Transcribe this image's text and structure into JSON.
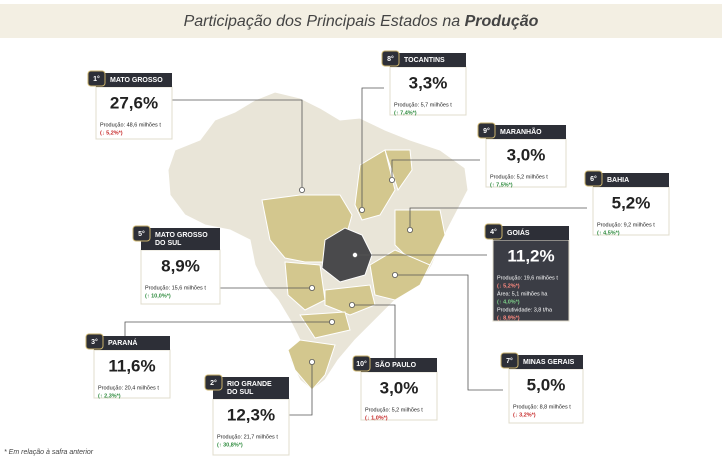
{
  "title": {
    "text": "Participação dos Principais Estados na ",
    "emphasis": "Produção"
  },
  "cards": [
    {
      "rank": "1°",
      "name": [
        "MATO GROSSO"
      ],
      "share": "27,6%",
      "details": [
        {
          "label": "Produção: 48,6 milhões t",
          "change": "(↓ 5,2%*)"
        }
      ]
    },
    {
      "rank": "8°",
      "name": [
        "TOCANTINS"
      ],
      "share": "3,3%",
      "details": [
        {
          "label": "Produção: 5,7 milhões t",
          "change": "(↑ 7,4%*)"
        }
      ]
    },
    {
      "rank": "9°",
      "name": [
        "MARANHÃO"
      ],
      "share": "3,0%",
      "details": [
        {
          "label": "Produção: 5,2 milhões t",
          "change": "(↑ 7,5%*)"
        }
      ]
    },
    {
      "rank": "6°",
      "name": [
        "BAHIA"
      ],
      "share": "5,2%",
      "details": [
        {
          "label": "Produção: 9,2 milhões t",
          "change": "(↑ 4,5%*)"
        }
      ]
    },
    {
      "rank": "4°",
      "name": [
        "GOIÁS"
      ],
      "share": "11,2%",
      "details": [
        {
          "label": "Produção: 19,6 milhões t",
          "change": "(↓ 5,2%*)"
        },
        {
          "label": "Área: 5,1 milhões ha",
          "change": "(↑ 4,0%*)"
        },
        {
          "label": "Produtividade: 3,8 t/ha",
          "change": "(↓ 8,9%*)"
        }
      ]
    },
    {
      "rank": "5°",
      "name": [
        "MATO GROSSO",
        "DO SUL"
      ],
      "share": "8,9%",
      "details": [
        {
          "label": "Produção: 15,6 milhões t",
          "change": "(↑ 10,0%*)"
        }
      ]
    },
    {
      "rank": "3°",
      "name": [
        "PARANÁ"
      ],
      "share": "11,6%",
      "details": [
        {
          "label": "Produção: 20,4 milhões t",
          "change": "(↑ 2,3%*)"
        }
      ]
    },
    {
      "rank": "2°",
      "name": [
        "RIO GRANDE",
        "DO SUL"
      ],
      "share": "12,3%",
      "details": [
        {
          "label": "Produção: 21,7 milhões t",
          "change": "(↑ 30,8%*)"
        }
      ]
    },
    {
      "rank": "10°",
      "name": [
        "SÃO PAULO"
      ],
      "share": "3,0%",
      "details": [
        {
          "label": "Produção: 5,2 milhões t",
          "change": "(↓ 1,0%*)"
        }
      ]
    },
    {
      "rank": "7°",
      "name": [
        "MINAS GERAIS"
      ],
      "share": "5,0%",
      "details": [
        {
          "label": "Produção: 8,8 milhões t",
          "change": "(↓ 3,2%*)"
        }
      ]
    }
  ],
  "footnote": "* Em relação à safra anterior"
}
